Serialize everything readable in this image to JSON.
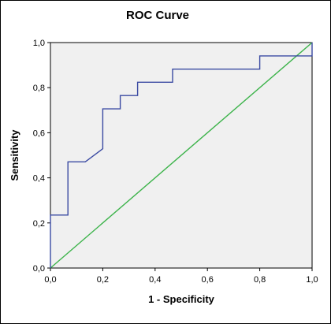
{
  "chart_data": {
    "type": "line",
    "title": "ROC Curve",
    "xlabel": "1 - Specificity",
    "ylabel": "Sensitivity",
    "xlim": [
      0.0,
      1.0
    ],
    "ylim": [
      0.0,
      1.0
    ],
    "x_ticks": [
      "0,0",
      "0,2",
      "0,4",
      "0,6",
      "0,8",
      "1,0"
    ],
    "y_ticks": [
      "0,0",
      "0,2",
      "0,4",
      "0,6",
      "0,8",
      "1,0"
    ],
    "grid": false,
    "legend": "none",
    "series": [
      {
        "color": "#3a4aa2",
        "style": "step",
        "points": [
          [
            0.0,
            0.0
          ],
          [
            0.0,
            0.235
          ],
          [
            0.067,
            0.235
          ],
          [
            0.067,
            0.471
          ],
          [
            0.133,
            0.471
          ],
          [
            0.2,
            0.529
          ],
          [
            0.2,
            0.706
          ],
          [
            0.267,
            0.706
          ],
          [
            0.267,
            0.765
          ],
          [
            0.333,
            0.765
          ],
          [
            0.333,
            0.824
          ],
          [
            0.467,
            0.824
          ],
          [
            0.467,
            0.882
          ],
          [
            0.8,
            0.882
          ],
          [
            0.8,
            0.941
          ],
          [
            1.0,
            0.941
          ],
          [
            1.0,
            1.0
          ]
        ]
      },
      {
        "color": "#3cb34a",
        "style": "reference",
        "points": [
          [
            0.0,
            0.0
          ],
          [
            1.0,
            1.0
          ]
        ]
      }
    ]
  }
}
